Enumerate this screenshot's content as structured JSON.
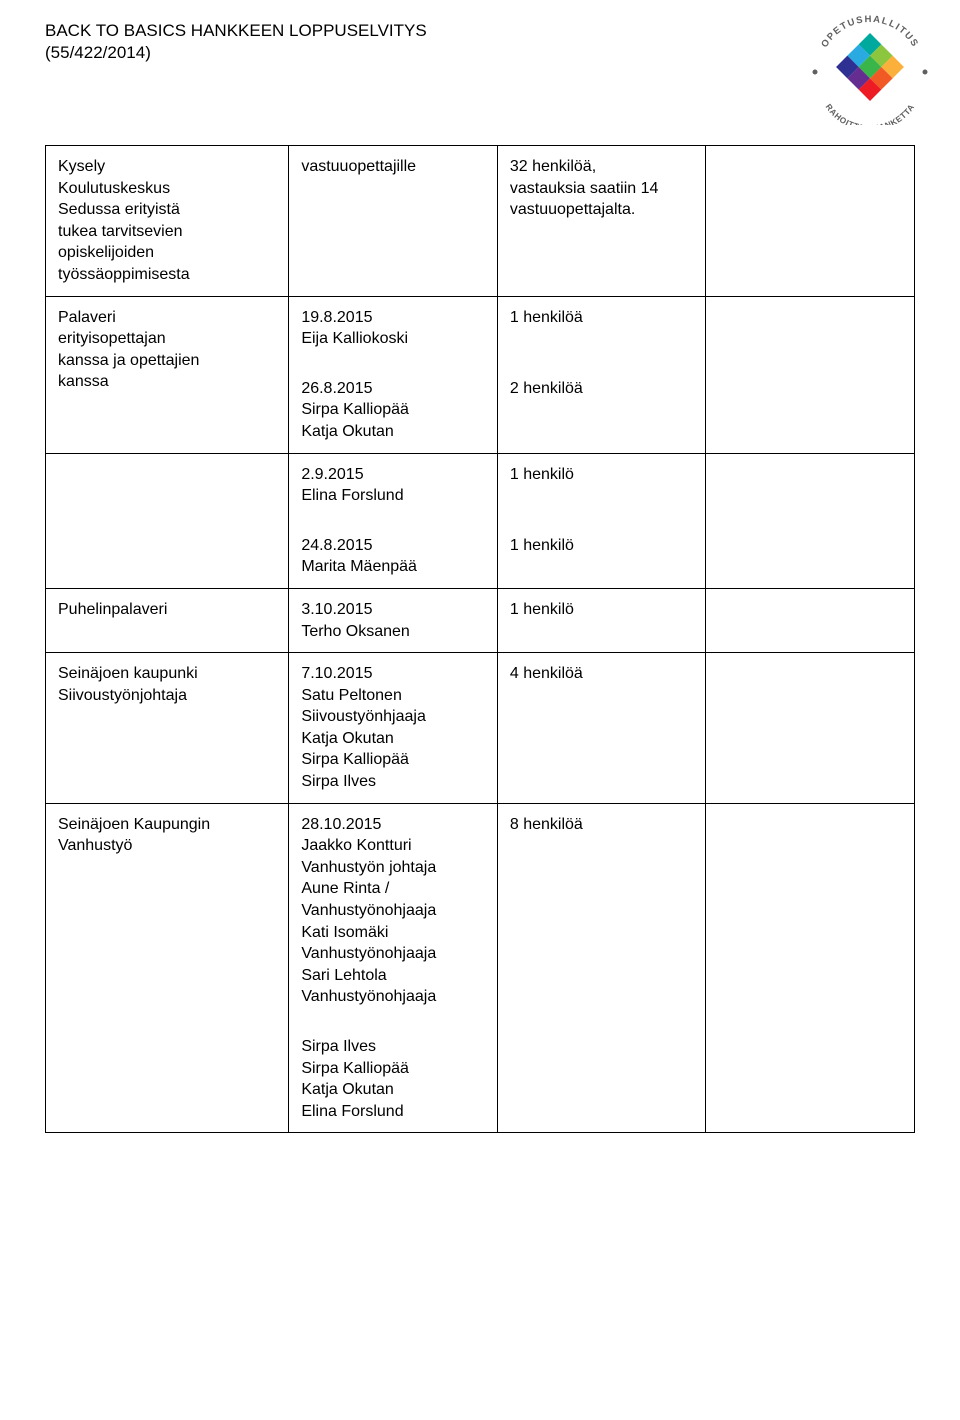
{
  "header": {
    "line1": "BACK TO BASICS HANKKEEN LOPPUSELVITYS",
    "line2": "(55/422/2014)"
  },
  "logo": {
    "top_arc": "OPETUSHALLITUS",
    "bottom_arc": "RAHOITTAA HANKETTA",
    "colors": {
      "v1": "#00a99d",
      "v2": "#39b54a",
      "v3": "#8cc63f",
      "v4": "#fbb03b",
      "v5": "#f15a24",
      "v6": "#ed1c24",
      "v7": "#c1272d",
      "v8": "#662d91",
      "v9": "#2e3192",
      "v10": "#29abe2"
    }
  },
  "rows": [
    {
      "c1": "Kysely\nKoulutuskeskus\nSedussa erityistä\ntukea tarvitsevien\nopiskelijoiden\ntyössäoppimisesta",
      "c2": "vastuuopettajille",
      "c3": "32 henkilöä,\nvastauksia saatiin 14\nvastuuopettajalta.",
      "c4": ""
    },
    {
      "c1": "Palaveri\nerityisopettajan\nkanssa ja opettajien\nkanssa",
      "c2_blocks": [
        "19.8.2015\nEija Kalliokoski",
        "26.8.2015\nSirpa Kalliopää\nKatja Okutan"
      ],
      "c3_blocks": [
        "1 henkilöä",
        "2 henkilöä"
      ],
      "c4": ""
    },
    {
      "c1": "",
      "c2_blocks": [
        "2.9.2015\nElina Forslund",
        "24.8.2015\nMarita Mäenpää"
      ],
      "c3_blocks": [
        "1 henkilö",
        "1 henkilö"
      ],
      "c4": ""
    },
    {
      "c1": "Puhelinpalaveri",
      "c2": "3.10.2015\nTerho Oksanen",
      "c3": "1 henkilö",
      "c4": ""
    },
    {
      "c1": "Seinäjoen kaupunki\nSiivoustyönjohtaja",
      "c2": "7.10.2015\nSatu Peltonen\nSiivoustyönhjaaja\nKatja Okutan\nSirpa Kalliopää\nSirpa Ilves",
      "c3": "4 henkilöä",
      "c4": ""
    },
    {
      "c1": "Seinäjoen Kaupungin\nVanhustyö",
      "c2_blocks": [
        "28.10.2015\nJaakko Kontturi\nVanhustyön johtaja\nAune Rinta /\nVanhustyönohjaaja\nKati Isomäki\nVanhustyönohjaaja\nSari Lehtola\nVanhustyönohjaaja",
        "Sirpa Ilves\nSirpa Kalliopää\nKatja Okutan\nElina Forslund"
      ],
      "c3": "8 henkilöä",
      "c4": ""
    }
  ]
}
